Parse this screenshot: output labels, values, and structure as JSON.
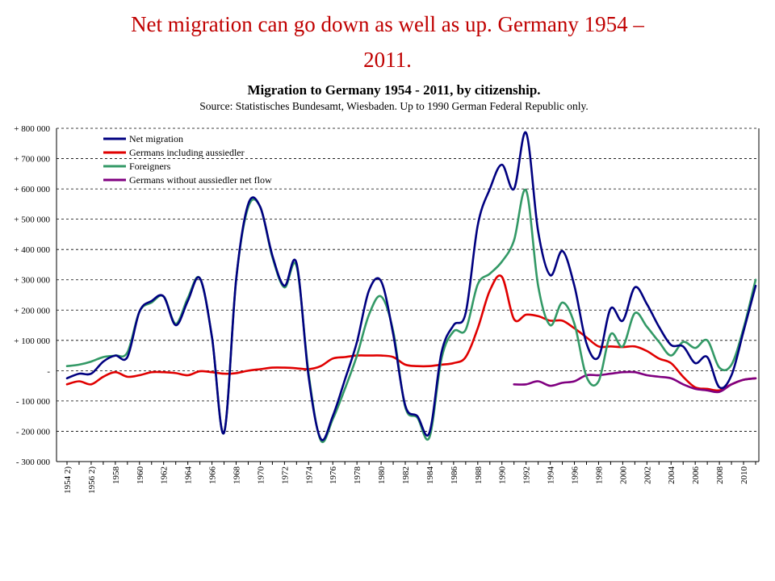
{
  "slide": {
    "title_line1": "Net migration can go down as well as up. Germany 1954 –",
    "title_line2": "2011."
  },
  "chart_data": {
    "type": "line",
    "title": "Migration to Germany 1954 - 2011, by citizenship.",
    "subtitle": "Source: Statistisches Bundesamt, Wiesbaden. Up to 1990 German Federal Republic only.",
    "xlabel": "",
    "ylabel": "",
    "ylim": [
      -300000,
      800000
    ],
    "xlim": [
      1954,
      2011
    ],
    "grid": true,
    "legend": "top-left",
    "y_ticks": [
      {
        "value": 800000,
        "label": "+ 800 000"
      },
      {
        "value": 700000,
        "label": "+ 700 000"
      },
      {
        "value": 600000,
        "label": "+ 600 000"
      },
      {
        "value": 500000,
        "label": "+ 500 000"
      },
      {
        "value": 400000,
        "label": "+ 400 000"
      },
      {
        "value": 300000,
        "label": "+ 300 000"
      },
      {
        "value": 200000,
        "label": "+ 200 000"
      },
      {
        "value": 100000,
        "label": "+ 100 000"
      },
      {
        "value": 0,
        "label": "-"
      },
      {
        "value": -100000,
        "label": "- 100 000"
      },
      {
        "value": -200000,
        "label": "- 200 000"
      },
      {
        "value": -300000,
        "label": "- 300 000"
      }
    ],
    "x_ticks": [
      {
        "value": 1954,
        "label": "1954 2)"
      },
      {
        "value": 1956,
        "label": "1956 2)"
      },
      {
        "value": 1958,
        "label": "1958"
      },
      {
        "value": 1960,
        "label": "1960"
      },
      {
        "value": 1962,
        "label": "1962"
      },
      {
        "value": 1964,
        "label": "1964"
      },
      {
        "value": 1966,
        "label": "1966"
      },
      {
        "value": 1968,
        "label": "1968"
      },
      {
        "value": 1970,
        "label": "1970"
      },
      {
        "value": 1972,
        "label": "1972"
      },
      {
        "value": 1974,
        "label": "1974"
      },
      {
        "value": 1976,
        "label": "1976"
      },
      {
        "value": 1978,
        "label": "1978"
      },
      {
        "value": 1980,
        "label": "1980"
      },
      {
        "value": 1982,
        "label": "1982"
      },
      {
        "value": 1984,
        "label": "1984"
      },
      {
        "value": 1986,
        "label": "1986"
      },
      {
        "value": 1988,
        "label": "1988"
      },
      {
        "value": 1990,
        "label": "1990"
      },
      {
        "value": 1992,
        "label": "1992"
      },
      {
        "value": 1994,
        "label": "1994"
      },
      {
        "value": 1996,
        "label": "1996"
      },
      {
        "value": 1998,
        "label": "1998"
      },
      {
        "value": 2000,
        "label": "2000"
      },
      {
        "value": 2002,
        "label": "2002"
      },
      {
        "value": 2004,
        "label": "2004"
      },
      {
        "value": 2006,
        "label": "2006"
      },
      {
        "value": 2008,
        "label": "2008"
      },
      {
        "value": 2010,
        "label": "2010"
      }
    ],
    "series": [
      {
        "name": "Net migration",
        "color": "#000080",
        "x": [
          1954,
          1955,
          1956,
          1957,
          1958,
          1959,
          1960,
          1961,
          1962,
          1963,
          1964,
          1965,
          1966,
          1967,
          1968,
          1969,
          1970,
          1971,
          1972,
          1973,
          1974,
          1975,
          1976,
          1977,
          1978,
          1979,
          1980,
          1981,
          1982,
          1983,
          1984,
          1985,
          1986,
          1987,
          1988,
          1989,
          1990,
          1991,
          1992,
          1993,
          1994,
          1995,
          1996,
          1997,
          1998,
          1999,
          2000,
          2001,
          2002,
          2003,
          2004,
          2005,
          2006,
          2007,
          2008,
          2009,
          2010,
          2011
        ],
        "y": [
          -25000,
          -10000,
          -10000,
          30000,
          50000,
          45000,
          195000,
          230000,
          245000,
          150000,
          230000,
          305000,
          110000,
          -205000,
          300000,
          550000,
          540000,
          380000,
          280000,
          355000,
          -20000,
          -225000,
          -150000,
          -30000,
          95000,
          265000,
          295000,
          120000,
          -115000,
          -150000,
          -205000,
          60000,
          150000,
          190000,
          480000,
          600000,
          680000,
          600000,
          785000,
          460000,
          315000,
          395000,
          280000,
          90000,
          45000,
          205000,
          165000,
          275000,
          220000,
          145000,
          85000,
          80000,
          25000,
          45000,
          -55000,
          -15000,
          130000,
          280000
        ]
      },
      {
        "name": "Germans including aussiedler",
        "color": "#e00000",
        "x": [
          1954,
          1955,
          1956,
          1957,
          1958,
          1959,
          1960,
          1961,
          1962,
          1963,
          1964,
          1965,
          1966,
          1967,
          1968,
          1969,
          1970,
          1971,
          1972,
          1973,
          1974,
          1975,
          1976,
          1977,
          1978,
          1979,
          1980,
          1981,
          1982,
          1983,
          1984,
          1985,
          1986,
          1987,
          1988,
          1989,
          1990,
          1991,
          1992,
          1993,
          1994,
          1995,
          1996,
          1997,
          1998,
          1999,
          2000,
          2001,
          2002,
          2003,
          2004,
          2005,
          2006,
          2007,
          2008,
          2009,
          2010,
          2011
        ],
        "y": [
          -45000,
          -35000,
          -45000,
          -20000,
          -5000,
          -20000,
          -15000,
          -5000,
          -5000,
          -8000,
          -15000,
          -2000,
          -5000,
          -10000,
          -8000,
          0,
          5000,
          10000,
          10000,
          8000,
          5000,
          15000,
          40000,
          45000,
          50000,
          50000,
          50000,
          45000,
          20000,
          15000,
          15000,
          20000,
          25000,
          45000,
          140000,
          265000,
          310000,
          170000,
          185000,
          180000,
          165000,
          165000,
          140000,
          110000,
          80000,
          80000,
          78000,
          80000,
          65000,
          40000,
          25000,
          -20000,
          -55000,
          -60000,
          -65000,
          -45000,
          -30000,
          -25000
        ]
      },
      {
        "name": "Foreigners",
        "color": "#339966",
        "x": [
          1954,
          1955,
          1956,
          1957,
          1958,
          1959,
          1960,
          1961,
          1962,
          1963,
          1964,
          1965,
          1966,
          1967,
          1968,
          1969,
          1970,
          1971,
          1972,
          1973,
          1974,
          1975,
          1976,
          1977,
          1978,
          1979,
          1980,
          1981,
          1982,
          1983,
          1984,
          1985,
          1986,
          1987,
          1988,
          1989,
          1990,
          1991,
          1992,
          1993,
          1994,
          1995,
          1996,
          1997,
          1998,
          1999,
          2000,
          2001,
          2002,
          2003,
          2004,
          2005,
          2006,
          2007,
          2008,
          2009,
          2010,
          2011
        ],
        "y": [
          15000,
          20000,
          30000,
          45000,
          50000,
          60000,
          195000,
          225000,
          245000,
          155000,
          240000,
          305000,
          110000,
          -205000,
          300000,
          540000,
          540000,
          375000,
          275000,
          345000,
          -10000,
          -230000,
          -160000,
          -60000,
          50000,
          185000,
          245000,
          130000,
          -120000,
          -155000,
          -220000,
          40000,
          130000,
          135000,
          285000,
          320000,
          360000,
          430000,
          595000,
          280000,
          150000,
          225000,
          155000,
          -20000,
          -35000,
          120000,
          80000,
          190000,
          145000,
          95000,
          50000,
          95000,
          75000,
          100000,
          10000,
          20000,
          140000,
          300000
        ]
      },
      {
        "name": "Germans without aussiedler  net flow",
        "color": "#800080",
        "x": [
          1991,
          1992,
          1993,
          1994,
          1995,
          1996,
          1997,
          1998,
          1999,
          2000,
          2001,
          2002,
          2003,
          2004,
          2005,
          2006,
          2007,
          2008,
          2009,
          2010,
          2011
        ],
        "y": [
          -45000,
          -45000,
          -35000,
          -50000,
          -40000,
          -35000,
          -15000,
          -15000,
          -10000,
          -5000,
          -5000,
          -15000,
          -20000,
          -25000,
          -45000,
          -60000,
          -65000,
          -70000,
          -45000,
          -30000,
          -25000
        ]
      }
    ]
  }
}
